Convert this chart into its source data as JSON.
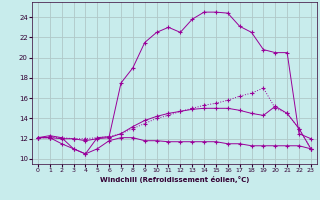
{
  "bg_color": "#c8ecec",
  "grid_color": "#b0c8c8",
  "line_color": "#990099",
  "xlabel": "Windchill (Refroidissement éolien,°C)",
  "xlim": [
    -0.5,
    23.5
  ],
  "ylim": [
    9.5,
    25.5
  ],
  "xticks": [
    0,
    1,
    2,
    3,
    4,
    5,
    6,
    7,
    8,
    9,
    10,
    11,
    12,
    13,
    14,
    15,
    16,
    17,
    18,
    19,
    20,
    21,
    22,
    23
  ],
  "yticks": [
    10,
    12,
    14,
    16,
    18,
    20,
    22,
    24
  ],
  "curve1_x": [
    0,
    1,
    2,
    3,
    4,
    5,
    6,
    7,
    8,
    9,
    10,
    11,
    12,
    13,
    14,
    15,
    16,
    17,
    18,
    19,
    20,
    21,
    22,
    23
  ],
  "curve1_y": [
    12.1,
    12.3,
    12.1,
    11.0,
    10.5,
    12.1,
    12.2,
    17.5,
    19.0,
    21.5,
    22.5,
    23.0,
    22.5,
    23.8,
    24.5,
    24.5,
    24.4,
    23.1,
    22.5,
    20.8,
    20.5,
    20.5,
    12.5,
    12.0
  ],
  "curve2_x": [
    0,
    1,
    2,
    3,
    4,
    5,
    6,
    7,
    8,
    9,
    10,
    11,
    12,
    13,
    14,
    15,
    16,
    17,
    18,
    19,
    20,
    21,
    22,
    23
  ],
  "curve2_y": [
    12.1,
    12.1,
    12.1,
    12.0,
    12.0,
    12.1,
    12.2,
    12.5,
    13.0,
    13.5,
    14.0,
    14.3,
    14.7,
    15.0,
    15.3,
    15.5,
    15.8,
    16.2,
    16.5,
    17.0,
    15.0,
    14.5,
    13.0,
    11.0
  ],
  "curve3_x": [
    0,
    1,
    2,
    3,
    4,
    5,
    6,
    7,
    8,
    9,
    10,
    11,
    12,
    13,
    14,
    15,
    16,
    17,
    18,
    19,
    20,
    21,
    22,
    23
  ],
  "curve3_y": [
    12.1,
    12.1,
    11.5,
    11.0,
    10.5,
    11.0,
    11.8,
    12.1,
    12.1,
    11.8,
    11.8,
    11.7,
    11.7,
    11.7,
    11.7,
    11.7,
    11.5,
    11.5,
    11.3,
    11.3,
    11.3,
    11.3,
    11.3,
    11.0
  ],
  "curve4_x": [
    0,
    1,
    2,
    3,
    4,
    5,
    6,
    7,
    8,
    9,
    10,
    11,
    12,
    13,
    14,
    15,
    16,
    17,
    18,
    19,
    20,
    21,
    22,
    23
  ],
  "curve4_y": [
    12.1,
    12.1,
    12.0,
    12.0,
    11.8,
    12.0,
    12.1,
    12.5,
    13.2,
    13.8,
    14.2,
    14.5,
    14.7,
    14.9,
    15.0,
    15.0,
    15.0,
    14.8,
    14.5,
    14.3,
    15.2,
    14.5,
    13.0,
    11.0
  ]
}
